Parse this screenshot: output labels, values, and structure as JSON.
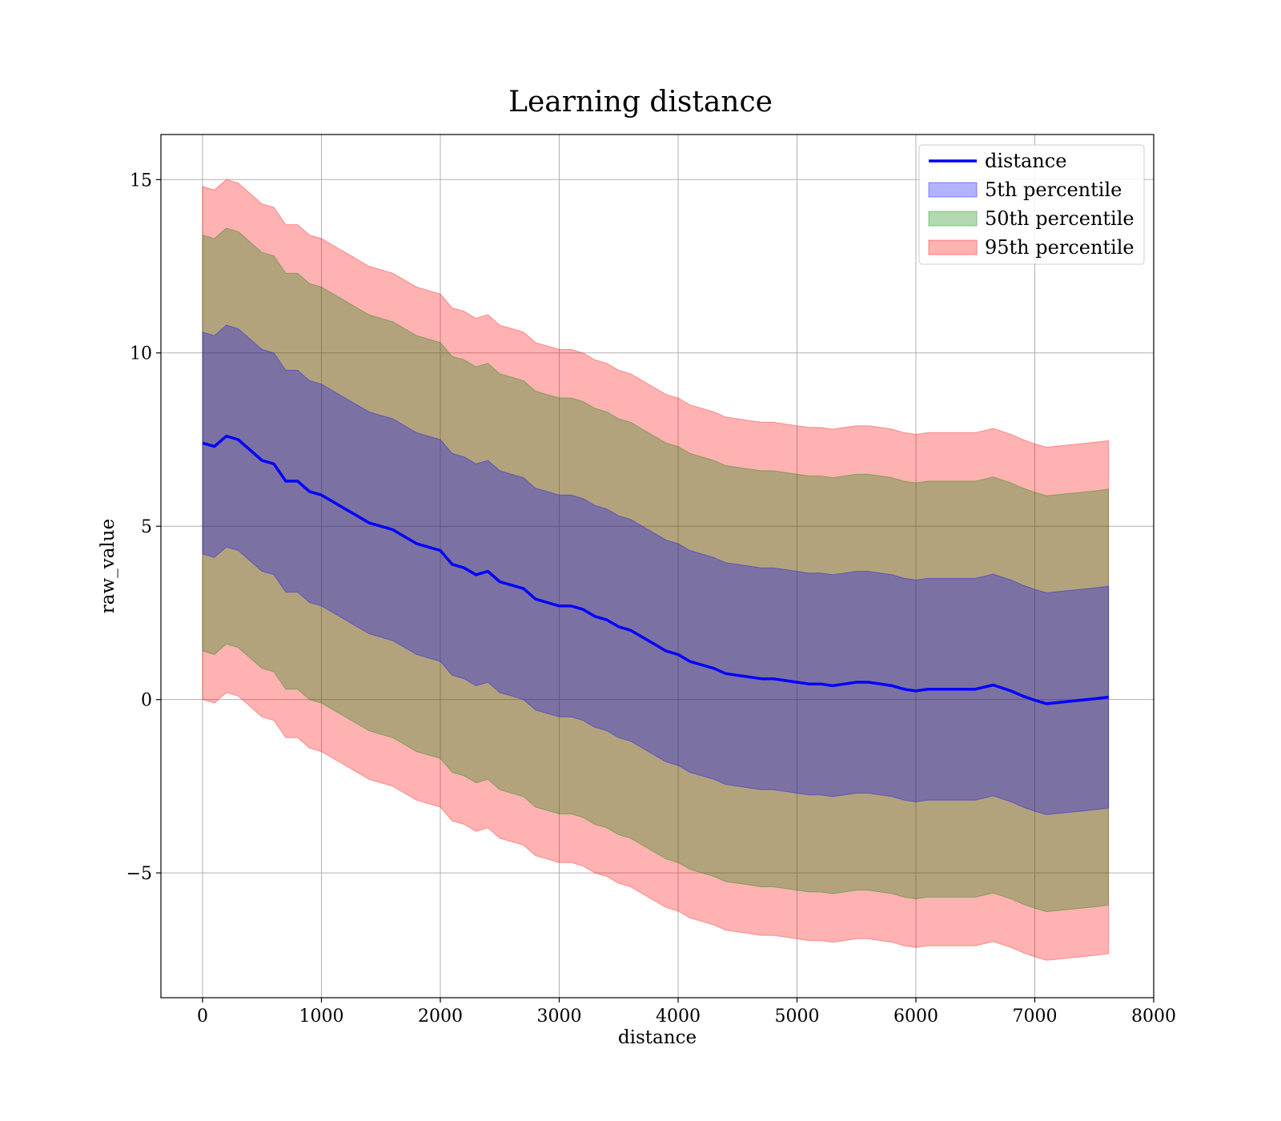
{
  "chart_data": {
    "type": "area",
    "title": "Learning distance",
    "xlabel": "distance",
    "ylabel": "raw_value",
    "xlim": [
      -350,
      8000
    ],
    "ylim": [
      -8.6,
      16.3
    ],
    "xticks": [
      0,
      1000,
      2000,
      3000,
      4000,
      5000,
      6000,
      7000,
      8000
    ],
    "yticks": [
      -5,
      0,
      5,
      10,
      15
    ],
    "ytick_labels": [
      "−5",
      "0",
      "5",
      "10",
      "15"
    ],
    "grid": true,
    "legend_position": "top-right",
    "x": [
      0,
      100,
      200,
      300,
      400,
      500,
      600,
      700,
      800,
      900,
      1000,
      1100,
      1200,
      1300,
      1400,
      1500,
      1600,
      1700,
      1800,
      1900,
      2000,
      2100,
      2200,
      2300,
      2400,
      2500,
      2600,
      2700,
      2800,
      2900,
      3000,
      3100,
      3200,
      3300,
      3400,
      3500,
      3600,
      3700,
      3800,
      3900,
      4000,
      4100,
      4200,
      4300,
      4400,
      4500,
      4600,
      4700,
      4800,
      4900,
      5000,
      5100,
      5200,
      5300,
      5400,
      5500,
      5600,
      5700,
      5800,
      5900,
      6000,
      6100,
      6200,
      6300,
      6400,
      6500,
      6600,
      6650,
      6800,
      6900,
      7000,
      7100,
      7300,
      7500,
      7620
    ],
    "line": {
      "name": "distance",
      "color": "#0000ff",
      "values": [
        7.4,
        7.3,
        7.6,
        7.5,
        7.2,
        6.9,
        6.8,
        6.3,
        6.3,
        6.0,
        5.9,
        5.7,
        5.5,
        5.3,
        5.1,
        5.0,
        4.9,
        4.7,
        4.5,
        4.4,
        4.3,
        3.9,
        3.8,
        3.6,
        3.7,
        3.4,
        3.3,
        3.2,
        2.9,
        2.8,
        2.7,
        2.7,
        2.6,
        2.4,
        2.3,
        2.1,
        2.0,
        1.8,
        1.6,
        1.4,
        1.3,
        1.1,
        1.0,
        0.9,
        0.75,
        0.7,
        0.65,
        0.6,
        0.6,
        0.55,
        0.5,
        0.45,
        0.45,
        0.4,
        0.45,
        0.5,
        0.5,
        0.45,
        0.4,
        0.3,
        0.25,
        0.3,
        0.3,
        0.3,
        0.3,
        0.3,
        0.38,
        0.42,
        0.25,
        0.1,
        -0.02,
        -0.12,
        -0.05,
        0.02,
        0.07
      ]
    },
    "bands": [
      {
        "name": "5th percentile",
        "color": "#0000ff",
        "offset": 3.2
      },
      {
        "name": "50th percentile",
        "color": "#008000",
        "offset": 6.0
      },
      {
        "name": "95th percentile",
        "color": "#ff0000",
        "offset": 7.4
      }
    ],
    "legend": [
      "distance",
      "5th percentile",
      "50th percentile",
      "95th percentile"
    ]
  }
}
